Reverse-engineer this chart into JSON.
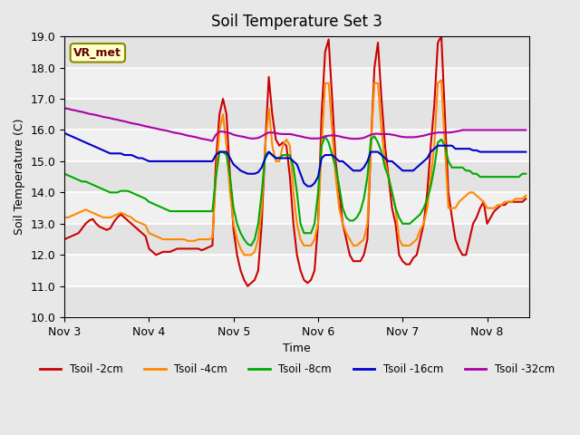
{
  "title": "Soil Temperature Set 3",
  "xlabel": "Time",
  "ylabel": "Soil Temperature (C)",
  "ylim": [
    10.0,
    19.0
  ],
  "yticks": [
    10.0,
    11.0,
    12.0,
    13.0,
    14.0,
    15.0,
    16.0,
    17.0,
    18.0,
    19.0
  ],
  "background_color": "#e8e8e8",
  "plot_bg_color": "#f0f0f0",
  "annotation_text": "VR_met",
  "annotation_bbox": {
    "boxstyle": "round,pad=0.3",
    "facecolor": "#ffffcc",
    "edgecolor": "#888800"
  },
  "series": {
    "Tsoil -2cm": {
      "color": "#cc0000",
      "lw": 1.5
    },
    "Tsoil -4cm": {
      "color": "#ff8800",
      "lw": 1.5
    },
    "Tsoil -8cm": {
      "color": "#00aa00",
      "lw": 1.5
    },
    "Tsoil -16cm": {
      "color": "#0000cc",
      "lw": 1.5
    },
    "Tsoil -32cm": {
      "color": "#aa00aa",
      "lw": 1.5
    }
  },
  "x_ticks_positions": [
    0,
    24,
    48,
    72,
    96,
    120
  ],
  "x_tick_labels": [
    "Nov 3",
    "Nov 4",
    "Nov 5",
    "Nov 6",
    "Nov 7",
    "Nov 8"
  ],
  "time_hours": [
    0,
    1,
    2,
    3,
    4,
    5,
    6,
    7,
    8,
    9,
    10,
    11,
    12,
    13,
    14,
    15,
    16,
    17,
    18,
    19,
    20,
    21,
    22,
    23,
    24,
    25,
    26,
    27,
    28,
    29,
    30,
    31,
    32,
    33,
    34,
    35,
    36,
    37,
    38,
    39,
    40,
    41,
    42,
    43,
    44,
    45,
    46,
    47,
    48,
    49,
    50,
    51,
    52,
    53,
    54,
    55,
    56,
    57,
    58,
    59,
    60,
    61,
    62,
    63,
    64,
    65,
    66,
    67,
    68,
    69,
    70,
    71,
    72,
    73,
    74,
    75,
    76,
    77,
    78,
    79,
    80,
    81,
    82,
    83,
    84,
    85,
    86,
    87,
    88,
    89,
    90,
    91,
    92,
    93,
    94,
    95,
    96,
    97,
    98,
    99,
    100,
    101,
    102,
    103,
    104,
    105,
    106,
    107,
    108,
    109,
    110,
    111,
    112,
    113,
    114,
    115,
    116,
    117,
    118,
    119,
    120,
    121,
    122,
    123,
    124,
    125,
    126,
    127,
    128,
    129,
    130,
    131
  ],
  "Tsoil_2cm": [
    12.5,
    12.55,
    12.6,
    12.65,
    12.7,
    12.85,
    13.0,
    13.1,
    13.15,
    13.0,
    12.9,
    12.85,
    12.8,
    12.85,
    13.05,
    13.2,
    13.3,
    13.2,
    13.1,
    13.0,
    12.9,
    12.8,
    12.7,
    12.6,
    12.2,
    12.1,
    12.0,
    12.05,
    12.1,
    12.1,
    12.1,
    12.15,
    12.2,
    12.2,
    12.2,
    12.2,
    12.2,
    12.2,
    12.2,
    12.15,
    12.2,
    12.25,
    12.3,
    15.0,
    16.5,
    17.0,
    16.5,
    14.5,
    12.8,
    12.0,
    11.5,
    11.2,
    11.0,
    11.1,
    11.2,
    11.5,
    13.0,
    15.5,
    17.7,
    16.5,
    15.7,
    15.5,
    15.6,
    15.5,
    14.5,
    13.0,
    12.0,
    11.5,
    11.2,
    11.1,
    11.2,
    11.5,
    13.0,
    16.5,
    18.5,
    18.9,
    17.0,
    15.0,
    14.0,
    13.0,
    12.5,
    12.0,
    11.8,
    11.8,
    11.8,
    12.0,
    12.5,
    15.5,
    18.0,
    18.8,
    17.0,
    15.5,
    14.5,
    13.5,
    13.0,
    12.0,
    11.8,
    11.7,
    11.7,
    11.9,
    12.0,
    12.5,
    13.0,
    14.0,
    15.5,
    16.8,
    18.8,
    19.0,
    16.5,
    14.0,
    13.2,
    12.5,
    12.2,
    12.0,
    12.0,
    12.5,
    13.0,
    13.2,
    13.5,
    13.7,
    13.0,
    13.2,
    13.4,
    13.5,
    13.6,
    13.6,
    13.7,
    13.7,
    13.7,
    13.7,
    13.7,
    13.8
  ],
  "Tsoil_4cm": [
    13.2,
    13.2,
    13.25,
    13.3,
    13.35,
    13.4,
    13.45,
    13.4,
    13.35,
    13.3,
    13.25,
    13.2,
    13.2,
    13.2,
    13.25,
    13.3,
    13.35,
    13.3,
    13.25,
    13.2,
    13.1,
    13.05,
    13.0,
    12.95,
    12.7,
    12.65,
    12.6,
    12.55,
    12.5,
    12.5,
    12.5,
    12.5,
    12.5,
    12.5,
    12.5,
    12.45,
    12.45,
    12.45,
    12.5,
    12.5,
    12.5,
    12.5,
    12.55,
    14.5,
    16.0,
    16.5,
    15.5,
    14.0,
    13.0,
    12.5,
    12.2,
    12.0,
    12.0,
    12.0,
    12.1,
    12.5,
    13.5,
    15.5,
    16.7,
    15.5,
    15.0,
    15.0,
    15.5,
    15.7,
    15.5,
    14.0,
    13.0,
    12.5,
    12.3,
    12.3,
    12.3,
    12.5,
    13.0,
    15.5,
    17.5,
    17.5,
    16.0,
    14.5,
    13.5,
    13.0,
    12.7,
    12.5,
    12.3,
    12.3,
    12.4,
    12.5,
    13.0,
    15.5,
    17.5,
    17.5,
    16.0,
    15.0,
    14.5,
    14.0,
    13.5,
    12.5,
    12.3,
    12.3,
    12.3,
    12.4,
    12.5,
    12.8,
    13.0,
    13.5,
    14.5,
    15.5,
    17.5,
    17.6,
    15.5,
    13.5,
    13.5,
    13.5,
    13.7,
    13.8,
    13.9,
    14.0,
    14.0,
    13.9,
    13.8,
    13.7,
    13.5,
    13.5,
    13.5,
    13.6,
    13.6,
    13.7,
    13.7,
    13.7,
    13.8,
    13.8,
    13.8,
    13.9
  ],
  "Tsoil_8cm": [
    14.6,
    14.55,
    14.5,
    14.45,
    14.4,
    14.35,
    14.35,
    14.3,
    14.25,
    14.2,
    14.15,
    14.1,
    14.05,
    14.0,
    14.0,
    14.0,
    14.05,
    14.05,
    14.05,
    14.0,
    13.95,
    13.9,
    13.85,
    13.8,
    13.7,
    13.65,
    13.6,
    13.55,
    13.5,
    13.45,
    13.4,
    13.4,
    13.4,
    13.4,
    13.4,
    13.4,
    13.4,
    13.4,
    13.4,
    13.4,
    13.4,
    13.4,
    13.4,
    14.5,
    15.3,
    15.3,
    15.2,
    14.5,
    13.5,
    13.0,
    12.7,
    12.5,
    12.35,
    12.3,
    12.5,
    13.0,
    14.0,
    15.2,
    15.3,
    15.2,
    15.1,
    15.1,
    15.2,
    15.2,
    15.2,
    14.8,
    14.0,
    13.0,
    12.7,
    12.7,
    12.7,
    13.0,
    14.0,
    15.5,
    15.8,
    15.6,
    15.2,
    14.8,
    14.2,
    13.5,
    13.2,
    13.1,
    13.1,
    13.2,
    13.4,
    13.8,
    14.5,
    15.7,
    15.8,
    15.6,
    15.3,
    14.8,
    14.5,
    14.0,
    13.5,
    13.2,
    13.0,
    13.0,
    13.0,
    13.1,
    13.2,
    13.3,
    13.5,
    13.8,
    14.2,
    14.8,
    15.6,
    15.7,
    15.5,
    15.0,
    14.8,
    14.8,
    14.8,
    14.8,
    14.7,
    14.7,
    14.6,
    14.6,
    14.5,
    14.5,
    14.5,
    14.5,
    14.5,
    14.5,
    14.5,
    14.5,
    14.5,
    14.5,
    14.5,
    14.5,
    14.6,
    14.6
  ],
  "Tsoil_16cm": [
    15.9,
    15.85,
    15.8,
    15.75,
    15.7,
    15.65,
    15.6,
    15.55,
    15.5,
    15.45,
    15.4,
    15.35,
    15.3,
    15.25,
    15.25,
    15.25,
    15.25,
    15.2,
    15.2,
    15.2,
    15.15,
    15.1,
    15.1,
    15.05,
    15.0,
    15.0,
    15.0,
    15.0,
    15.0,
    15.0,
    15.0,
    15.0,
    15.0,
    15.0,
    15.0,
    15.0,
    15.0,
    15.0,
    15.0,
    15.0,
    15.0,
    15.0,
    15.0,
    15.2,
    15.3,
    15.3,
    15.3,
    15.1,
    14.9,
    14.8,
    14.7,
    14.65,
    14.6,
    14.6,
    14.6,
    14.65,
    14.8,
    15.1,
    15.3,
    15.2,
    15.1,
    15.1,
    15.1,
    15.1,
    15.1,
    15.0,
    14.9,
    14.6,
    14.3,
    14.2,
    14.2,
    14.3,
    14.5,
    15.1,
    15.2,
    15.2,
    15.2,
    15.1,
    15.0,
    15.0,
    14.9,
    14.8,
    14.7,
    14.7,
    14.7,
    14.8,
    15.0,
    15.3,
    15.3,
    15.3,
    15.2,
    15.1,
    15.0,
    15.0,
    14.9,
    14.8,
    14.7,
    14.7,
    14.7,
    14.7,
    14.8,
    14.9,
    15.0,
    15.1,
    15.3,
    15.4,
    15.5,
    15.5,
    15.5,
    15.5,
    15.5,
    15.4,
    15.4,
    15.4,
    15.4,
    15.4,
    15.35,
    15.35,
    15.3,
    15.3,
    15.3,
    15.3,
    15.3,
    15.3,
    15.3,
    15.3,
    15.3,
    15.3,
    15.3,
    15.3,
    15.3,
    15.3
  ],
  "Tsoil_32cm": [
    16.7,
    16.68,
    16.65,
    16.63,
    16.6,
    16.58,
    16.55,
    16.52,
    16.5,
    16.48,
    16.45,
    16.42,
    16.4,
    16.38,
    16.35,
    16.33,
    16.3,
    16.28,
    16.25,
    16.22,
    16.2,
    16.18,
    16.15,
    16.12,
    16.1,
    16.07,
    16.05,
    16.02,
    16.0,
    15.98,
    15.95,
    15.92,
    15.9,
    15.88,
    15.85,
    15.82,
    15.8,
    15.78,
    15.75,
    15.72,
    15.7,
    15.68,
    15.65,
    15.85,
    15.95,
    15.95,
    15.92,
    15.9,
    15.85,
    15.82,
    15.8,
    15.78,
    15.75,
    15.73,
    15.73,
    15.75,
    15.8,
    15.87,
    15.92,
    15.92,
    15.9,
    15.88,
    15.87,
    15.87,
    15.87,
    15.85,
    15.82,
    15.8,
    15.77,
    15.75,
    15.73,
    15.73,
    15.73,
    15.75,
    15.8,
    15.82,
    15.83,
    15.82,
    15.8,
    15.77,
    15.75,
    15.73,
    15.72,
    15.72,
    15.73,
    15.75,
    15.8,
    15.85,
    15.88,
    15.88,
    15.87,
    15.87,
    15.87,
    15.85,
    15.83,
    15.8,
    15.78,
    15.77,
    15.77,
    15.77,
    15.78,
    15.8,
    15.82,
    15.85,
    15.88,
    15.9,
    15.92,
    15.92,
    15.92,
    15.92,
    15.93,
    15.95,
    15.97,
    16.0,
    16.0,
    16.0,
    16.0,
    16.0,
    16.0,
    16.0,
    16.0,
    16.0,
    16.0,
    16.0,
    16.0,
    16.0,
    16.0,
    16.0,
    16.0,
    16.0,
    16.0,
    16.0
  ]
}
